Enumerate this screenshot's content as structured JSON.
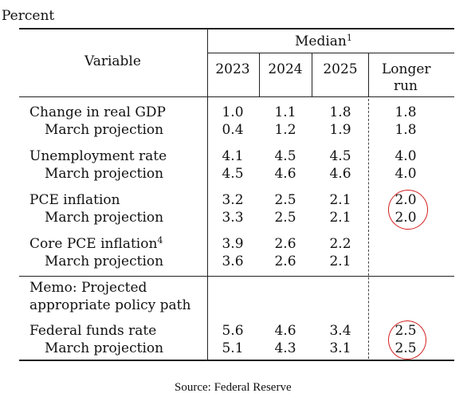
{
  "unit_label": "Percent",
  "header": {
    "variable": "Variable",
    "group": "Median",
    "group_note": "1",
    "years": [
      "2023",
      "2024",
      "2025"
    ],
    "longer_run": [
      "Longer",
      "run"
    ]
  },
  "rows": [
    {
      "label": "Change in real GDP",
      "v2023": "1.0",
      "v2024": "1.1",
      "v2025": "1.8",
      "lr": "1.8"
    },
    {
      "label": "March projection",
      "v2023": "0.4",
      "v2024": "1.2",
      "v2025": "1.9",
      "lr": "1.8"
    },
    {
      "label": "Unemployment rate",
      "v2023": "4.1",
      "v2024": "4.5",
      "v2025": "4.5",
      "lr": "4.0"
    },
    {
      "label": "March projection",
      "v2023": "4.5",
      "v2024": "4.6",
      "v2025": "4.6",
      "lr": "4.0"
    },
    {
      "label": "PCE inflation",
      "v2023": "3.2",
      "v2024": "2.5",
      "v2025": "2.1",
      "lr": "2.0"
    },
    {
      "label": "March projection",
      "v2023": "3.3",
      "v2024": "2.5",
      "v2025": "2.1",
      "lr": "2.0"
    },
    {
      "label": "Core PCE inflation",
      "note": "4",
      "v2023": "3.9",
      "v2024": "2.6",
      "v2025": "2.2",
      "lr": ""
    },
    {
      "label": "March projection",
      "v2023": "3.6",
      "v2024": "2.6",
      "v2025": "2.1",
      "lr": ""
    }
  ],
  "memo": [
    "Memo: Projected",
    "appropriate policy path"
  ],
  "fed_rows": [
    {
      "label": "Federal funds rate",
      "v2023": "5.6",
      "v2024": "4.6",
      "v2025": "3.4",
      "lr": "2.5"
    },
    {
      "label": "March projection",
      "v2023": "5.1",
      "v2024": "4.3",
      "v2025": "3.1",
      "lr": "2.5"
    }
  ],
  "source": "Source: Federal Reserve",
  "highlight_color": "#d42020"
}
